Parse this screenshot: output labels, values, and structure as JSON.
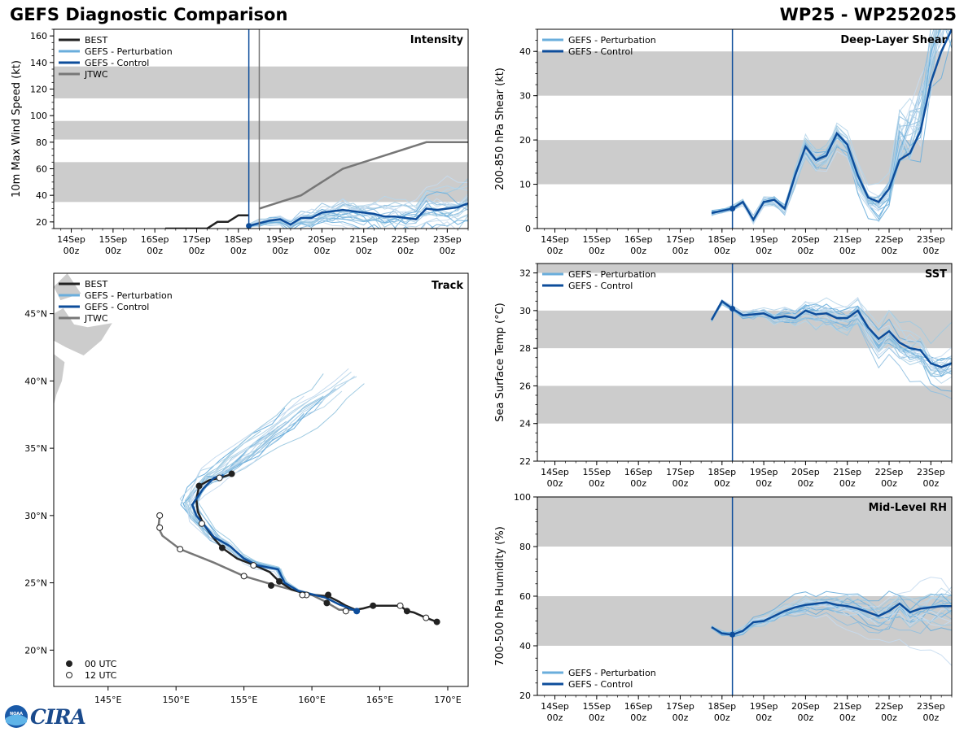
{
  "header": {
    "title": "GEFS Diagnostic Comparison",
    "storm_id": "WP25 - WP252025"
  },
  "logo": {
    "noaa_text": "NOAA",
    "cira_text": "CIRA"
  },
  "colors": {
    "best": "#222222",
    "perturbation": "#6aaedc",
    "control": "#0d4d9b",
    "jtwc": "#777777",
    "band": "#cccccc",
    "spaghetti": [
      "#9ecae1",
      "#b7d6ea",
      "#6aaedc",
      "#c6dbef",
      "#8fbfe0"
    ]
  },
  "time_axis": {
    "tick_labels": [
      "14Sep\n00z",
      "15Sep\n00z",
      "16Sep\n00z",
      "17Sep\n00z",
      "18Sep\n00z",
      "19Sep\n00z",
      "20Sep\n00z",
      "21Sep\n00z",
      "22Sep\n00z",
      "23Sep\n00z"
    ],
    "tick_days": [
      0,
      1,
      2,
      3,
      4,
      5,
      6,
      7,
      8,
      9
    ],
    "xlim_days": [
      -0.42,
      9.5
    ],
    "init_day": 4.25,
    "jtwc_day": 4.5
  },
  "chart_data": [
    {
      "id": "intensity",
      "type": "line",
      "title": "Intensity",
      "xlabel": "",
      "ylabel": "10m Max Wind Speed (kt)",
      "ylim": [
        15,
        165
      ],
      "yticks": [
        20,
        40,
        60,
        80,
        100,
        120,
        140,
        160
      ],
      "bands": [
        [
          35,
          65
        ],
        [
          82,
          96
        ],
        [
          113,
          137
        ]
      ],
      "legend": [
        "BEST",
        "GEFS - Perturbation",
        "GEFS - Control",
        "JTWC"
      ],
      "series": [
        {
          "name": "BEST",
          "x": [
            2.25,
            2.5,
            2.75,
            3.0,
            3.25,
            3.5,
            3.75,
            4.0,
            4.25
          ],
          "y": [
            15,
            15,
            15,
            15,
            15,
            20,
            20,
            25,
            25
          ]
        },
        {
          "name": "JTWC",
          "x": [
            4.5,
            5.0,
            5.5,
            6.0,
            6.5,
            7.0,
            7.5,
            8.0,
            8.5,
            9.0,
            9.5
          ],
          "y": [
            30,
            35,
            40,
            50,
            60,
            65,
            70,
            75,
            80,
            80,
            80
          ]
        },
        {
          "name": "GEFS - Control",
          "x": [
            4.25,
            4.5,
            4.75,
            5.0,
            5.25,
            5.5,
            5.75,
            6.0,
            6.25,
            6.5,
            6.75,
            7.0,
            7.25,
            7.5,
            7.75,
            8.0,
            8.25,
            8.5,
            8.75,
            9.0,
            9.25,
            9.5
          ],
          "y": [
            17,
            19,
            21,
            22,
            18,
            23,
            23,
            27,
            28,
            29,
            28,
            27,
            26,
            24,
            24,
            23,
            22,
            30,
            29,
            30,
            31,
            34
          ]
        }
      ]
    },
    {
      "id": "shear",
      "type": "line",
      "title": "Deep-Layer Shear",
      "xlabel": "",
      "ylabel": "200-850 hPa Shear (kt)",
      "ylim": [
        0,
        45
      ],
      "yticks": [
        0,
        10,
        20,
        30,
        40
      ],
      "bands": [
        [
          10,
          20
        ],
        [
          30,
          40
        ]
      ],
      "legend": [
        "GEFS - Perturbation",
        "GEFS - Control"
      ],
      "series": [
        {
          "name": "GEFS - Control",
          "x": [
            3.75,
            4.0,
            4.25,
            4.5,
            4.75,
            5.0,
            5.25,
            5.5,
            5.75,
            6.0,
            6.25,
            6.5,
            6.75,
            7.0,
            7.25,
            7.5,
            7.75,
            8.0,
            8.25,
            8.5,
            8.75,
            9.0,
            9.25,
            9.5
          ],
          "y": [
            3.5,
            4,
            4.5,
            6,
            2,
            6,
            6.5,
            4.5,
            12,
            18.5,
            15.5,
            16.5,
            21.5,
            19,
            12,
            7,
            6,
            9,
            15.5,
            17,
            22,
            33,
            40,
            45
          ]
        }
      ]
    },
    {
      "id": "sst",
      "type": "line",
      "title": "SST",
      "xlabel": "",
      "ylabel": "Sea Surface Temp (°C)",
      "ylim": [
        22,
        32.5
      ],
      "yticks": [
        22,
        24,
        26,
        28,
        30,
        32
      ],
      "bands": [
        [
          24,
          26
        ],
        [
          28,
          30
        ],
        [
          32,
          32.5
        ]
      ],
      "legend": [
        "GEFS - Perturbation",
        "GEFS - Control"
      ],
      "series": [
        {
          "name": "GEFS - Control",
          "x": [
            3.75,
            4.0,
            4.25,
            4.5,
            4.75,
            5.0,
            5.25,
            5.5,
            5.75,
            6.0,
            6.25,
            6.5,
            6.75,
            7.0,
            7.25,
            7.5,
            7.75,
            8.0,
            8.25,
            8.5,
            8.75,
            9.0,
            9.25,
            9.5
          ],
          "y": [
            29.5,
            30.5,
            30.1,
            29.75,
            29.8,
            29.85,
            29.6,
            29.7,
            29.6,
            30.0,
            29.8,
            29.85,
            29.6,
            29.6,
            30.0,
            29.1,
            28.5,
            28.9,
            28.3,
            28.0,
            27.9,
            27.2,
            27.0,
            27.2
          ]
        }
      ]
    },
    {
      "id": "rh",
      "type": "line",
      "title": "Mid-Level RH",
      "xlabel": "",
      "ylabel": "700-500 hPa Humidity (%)",
      "ylim": [
        20,
        100
      ],
      "yticks": [
        20,
        40,
        60,
        80,
        100
      ],
      "bands": [
        [
          40,
          60
        ],
        [
          80,
          100
        ]
      ],
      "legend": [
        "GEFS - Perturbation",
        "GEFS - Control"
      ],
      "series": [
        {
          "name": "GEFS - Control",
          "x": [
            3.75,
            4.0,
            4.25,
            4.5,
            4.75,
            5.0,
            5.25,
            5.5,
            5.75,
            6.0,
            6.25,
            6.5,
            6.75,
            7.0,
            7.25,
            7.5,
            7.75,
            8.0,
            8.25,
            8.5,
            8.75,
            9.0,
            9.25,
            9.5
          ],
          "y": [
            47.5,
            45,
            44.5,
            46,
            49.5,
            50,
            52,
            54,
            55.5,
            56.5,
            57,
            57.5,
            56.5,
            56,
            55,
            53.5,
            52,
            54,
            57,
            53.5,
            55,
            55.5,
            56,
            56
          ]
        }
      ]
    },
    {
      "id": "track",
      "type": "line",
      "title": "Track",
      "xlabel": "",
      "ylabel": "",
      "xlim": [
        141,
        171.5
      ],
      "ylim": [
        17.3,
        48
      ],
      "xtick_values": [
        145,
        150,
        155,
        160,
        165,
        170
      ],
      "xtick_labels": [
        "145°E",
        "150°E",
        "155°E",
        "160°E",
        "165°E",
        "170°E"
      ],
      "ytick_values": [
        20,
        25,
        30,
        35,
        40,
        45
      ],
      "ytick_labels": [
        "20°N",
        "25°N",
        "30°N",
        "35°N",
        "40°N",
        "45°N"
      ],
      "legend": [
        "BEST",
        "GEFS - Perturbation",
        "GEFS - Control",
        "JTWC"
      ],
      "marker_legend": [
        "00 UTC",
        "12 UTC"
      ],
      "series": [
        {
          "name": "BEST",
          "points": [
            [
              169.2,
              22.1
            ],
            [
              168.4,
              22.4
            ],
            [
              167.5,
              22.8
            ],
            [
              167.0,
              22.9
            ],
            [
              166.5,
              23.3
            ],
            [
              165.5,
              23.3
            ],
            [
              164.5,
              23.3
            ],
            [
              163.8,
              23.1
            ],
            [
              163.2,
              23.0
            ],
            [
              162.5,
              23.3
            ],
            [
              162.0,
              23.6
            ],
            [
              161.2,
              24.0
            ],
            [
              160.2,
              24.1
            ],
            [
              159.5,
              24.2
            ],
            [
              158.5,
              24.5
            ],
            [
              157.6,
              25.1
            ],
            [
              156.9,
              25.8
            ],
            [
              155.8,
              26.3
            ],
            [
              154.5,
              26.8
            ],
            [
              153.4,
              27.6
            ],
            [
              152.7,
              28.4
            ],
            [
              152.0,
              29.4
            ],
            [
              151.6,
              30.3
            ],
            [
              151.5,
              31.2
            ],
            [
              151.7,
              32.2
            ],
            [
              152.4,
              32.6
            ],
            [
              153.2,
              32.8
            ],
            [
              154.2,
              33.1
            ]
          ],
          "markers": [
            [
              169.2,
              22.1,
              "00"
            ],
            [
              168.4,
              22.4,
              "12"
            ],
            [
              167.0,
              22.9,
              "00"
            ],
            [
              166.5,
              23.3,
              "12"
            ],
            [
              164.5,
              23.3,
              "00"
            ],
            [
              162.5,
              22.9,
              "12"
            ],
            [
              161.2,
              24.1,
              "00"
            ],
            [
              161.1,
              23.5,
              "00"
            ],
            [
              159.6,
              24.1,
              "12"
            ],
            [
              157.0,
              24.8,
              "00"
            ],
            [
              157.6,
              25.1,
              "00"
            ],
            [
              155.7,
              26.3,
              "12"
            ],
            [
              153.4,
              27.6,
              "00"
            ],
            [
              151.9,
              29.4,
              "12"
            ],
            [
              151.7,
              32.2,
              "00"
            ],
            [
              153.2,
              32.8,
              "12"
            ],
            [
              154.1,
              33.1,
              "00"
            ]
          ]
        },
        {
          "name": "JTWC",
          "points": [
            [
              163.2,
              23.0
            ],
            [
              162.0,
              23.0
            ],
            [
              161.0,
              23.6
            ],
            [
              160.0,
              24.1
            ],
            [
              158.5,
              24.5
            ],
            [
              157.0,
              24.9
            ],
            [
              155.0,
              25.5
            ],
            [
              152.8,
              26.5
            ],
            [
              150.3,
              27.5
            ],
            [
              149.0,
              28.5
            ],
            [
              148.7,
              29.1
            ],
            [
              148.8,
              30.0
            ]
          ],
          "markers": [
            [
              159.3,
              24.1,
              "12"
            ],
            [
              155.0,
              25.5,
              "12"
            ],
            [
              150.3,
              27.5,
              "12"
            ],
            [
              148.8,
              29.1,
              "12"
            ],
            [
              148.8,
              30.0,
              "12"
            ]
          ]
        },
        {
          "name": "GEFS - Control",
          "points": [
            [
              163.3,
              22.9
            ],
            [
              162.0,
              23.4
            ],
            [
              161.0,
              23.9
            ],
            [
              159.0,
              24.4
            ],
            [
              158.0,
              25.0
            ],
            [
              157.5,
              26.0
            ],
            [
              156.0,
              26.3
            ],
            [
              155.0,
              26.8
            ],
            [
              154.0,
              27.7
            ],
            [
              152.8,
              28.4
            ],
            [
              151.5,
              30.0
            ],
            [
              151.2,
              30.8
            ],
            [
              152.0,
              32.0
            ],
            [
              152.8,
              32.8
            ],
            [
              153.5,
              33.0
            ]
          ]
        }
      ]
    }
  ]
}
